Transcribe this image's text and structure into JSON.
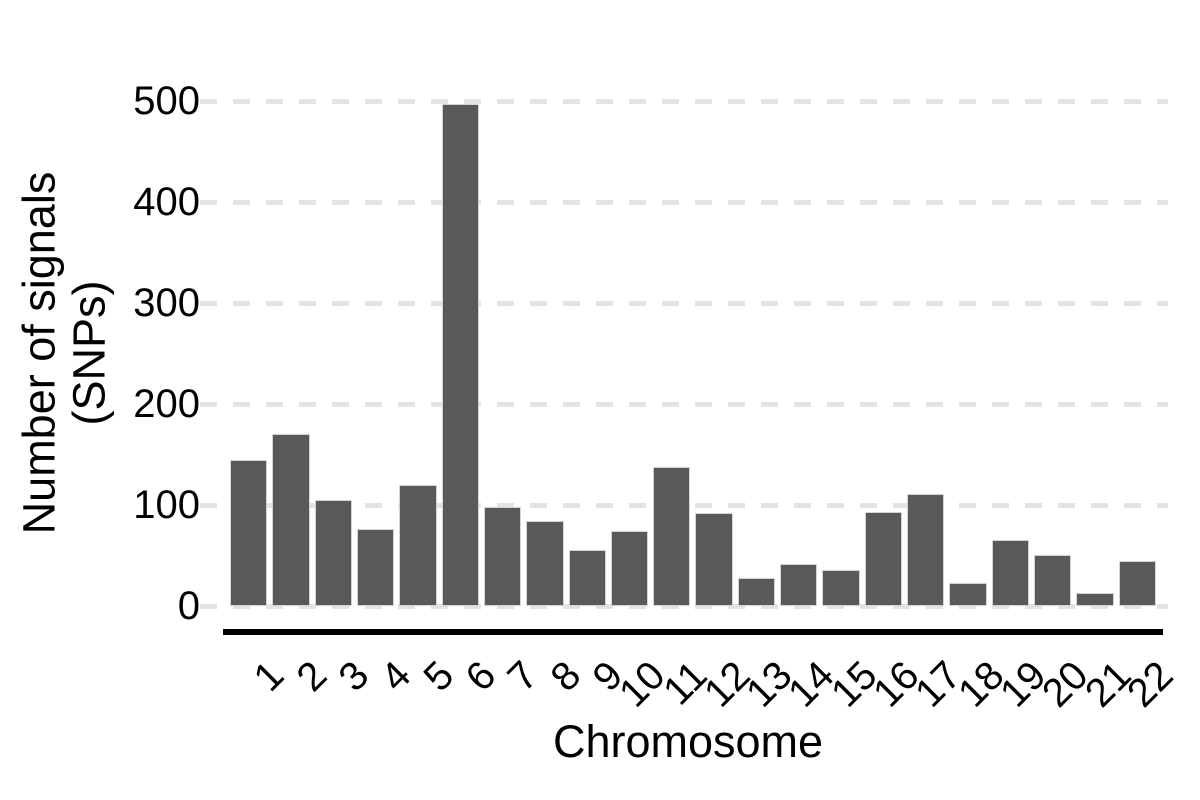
{
  "chart_data": {
    "type": "bar",
    "title": "",
    "xlabel": "Chromosome",
    "ylabel": "Number of signals (SNPs)",
    "ylabel_lines": [
      "Number of signals",
      "(SNPs)"
    ],
    "categories": [
      "1",
      "2",
      "3",
      "4",
      "5",
      "6",
      "7",
      "8",
      "9",
      "10",
      "11",
      "12",
      "13",
      "14",
      "15",
      "16",
      "17",
      "18",
      "19",
      "20",
      "21",
      "22"
    ],
    "values": [
      145,
      170,
      105,
      76,
      120,
      497,
      98,
      84,
      55,
      74,
      138,
      92,
      28,
      42,
      36,
      93,
      111,
      23,
      65,
      51,
      13,
      45
    ],
    "yticks": [
      0,
      100,
      200,
      300,
      400,
      500
    ],
    "ylim": [
      0,
      500
    ],
    "grid": "horizontal-dashed",
    "legend_position": "none",
    "colors": {
      "bar_fill": "#595959",
      "bar_border": "#d4d4d4",
      "gridline": "#e3e3e3",
      "axis_line": "#000000",
      "text": "#000000",
      "background": "#ffffff"
    }
  }
}
